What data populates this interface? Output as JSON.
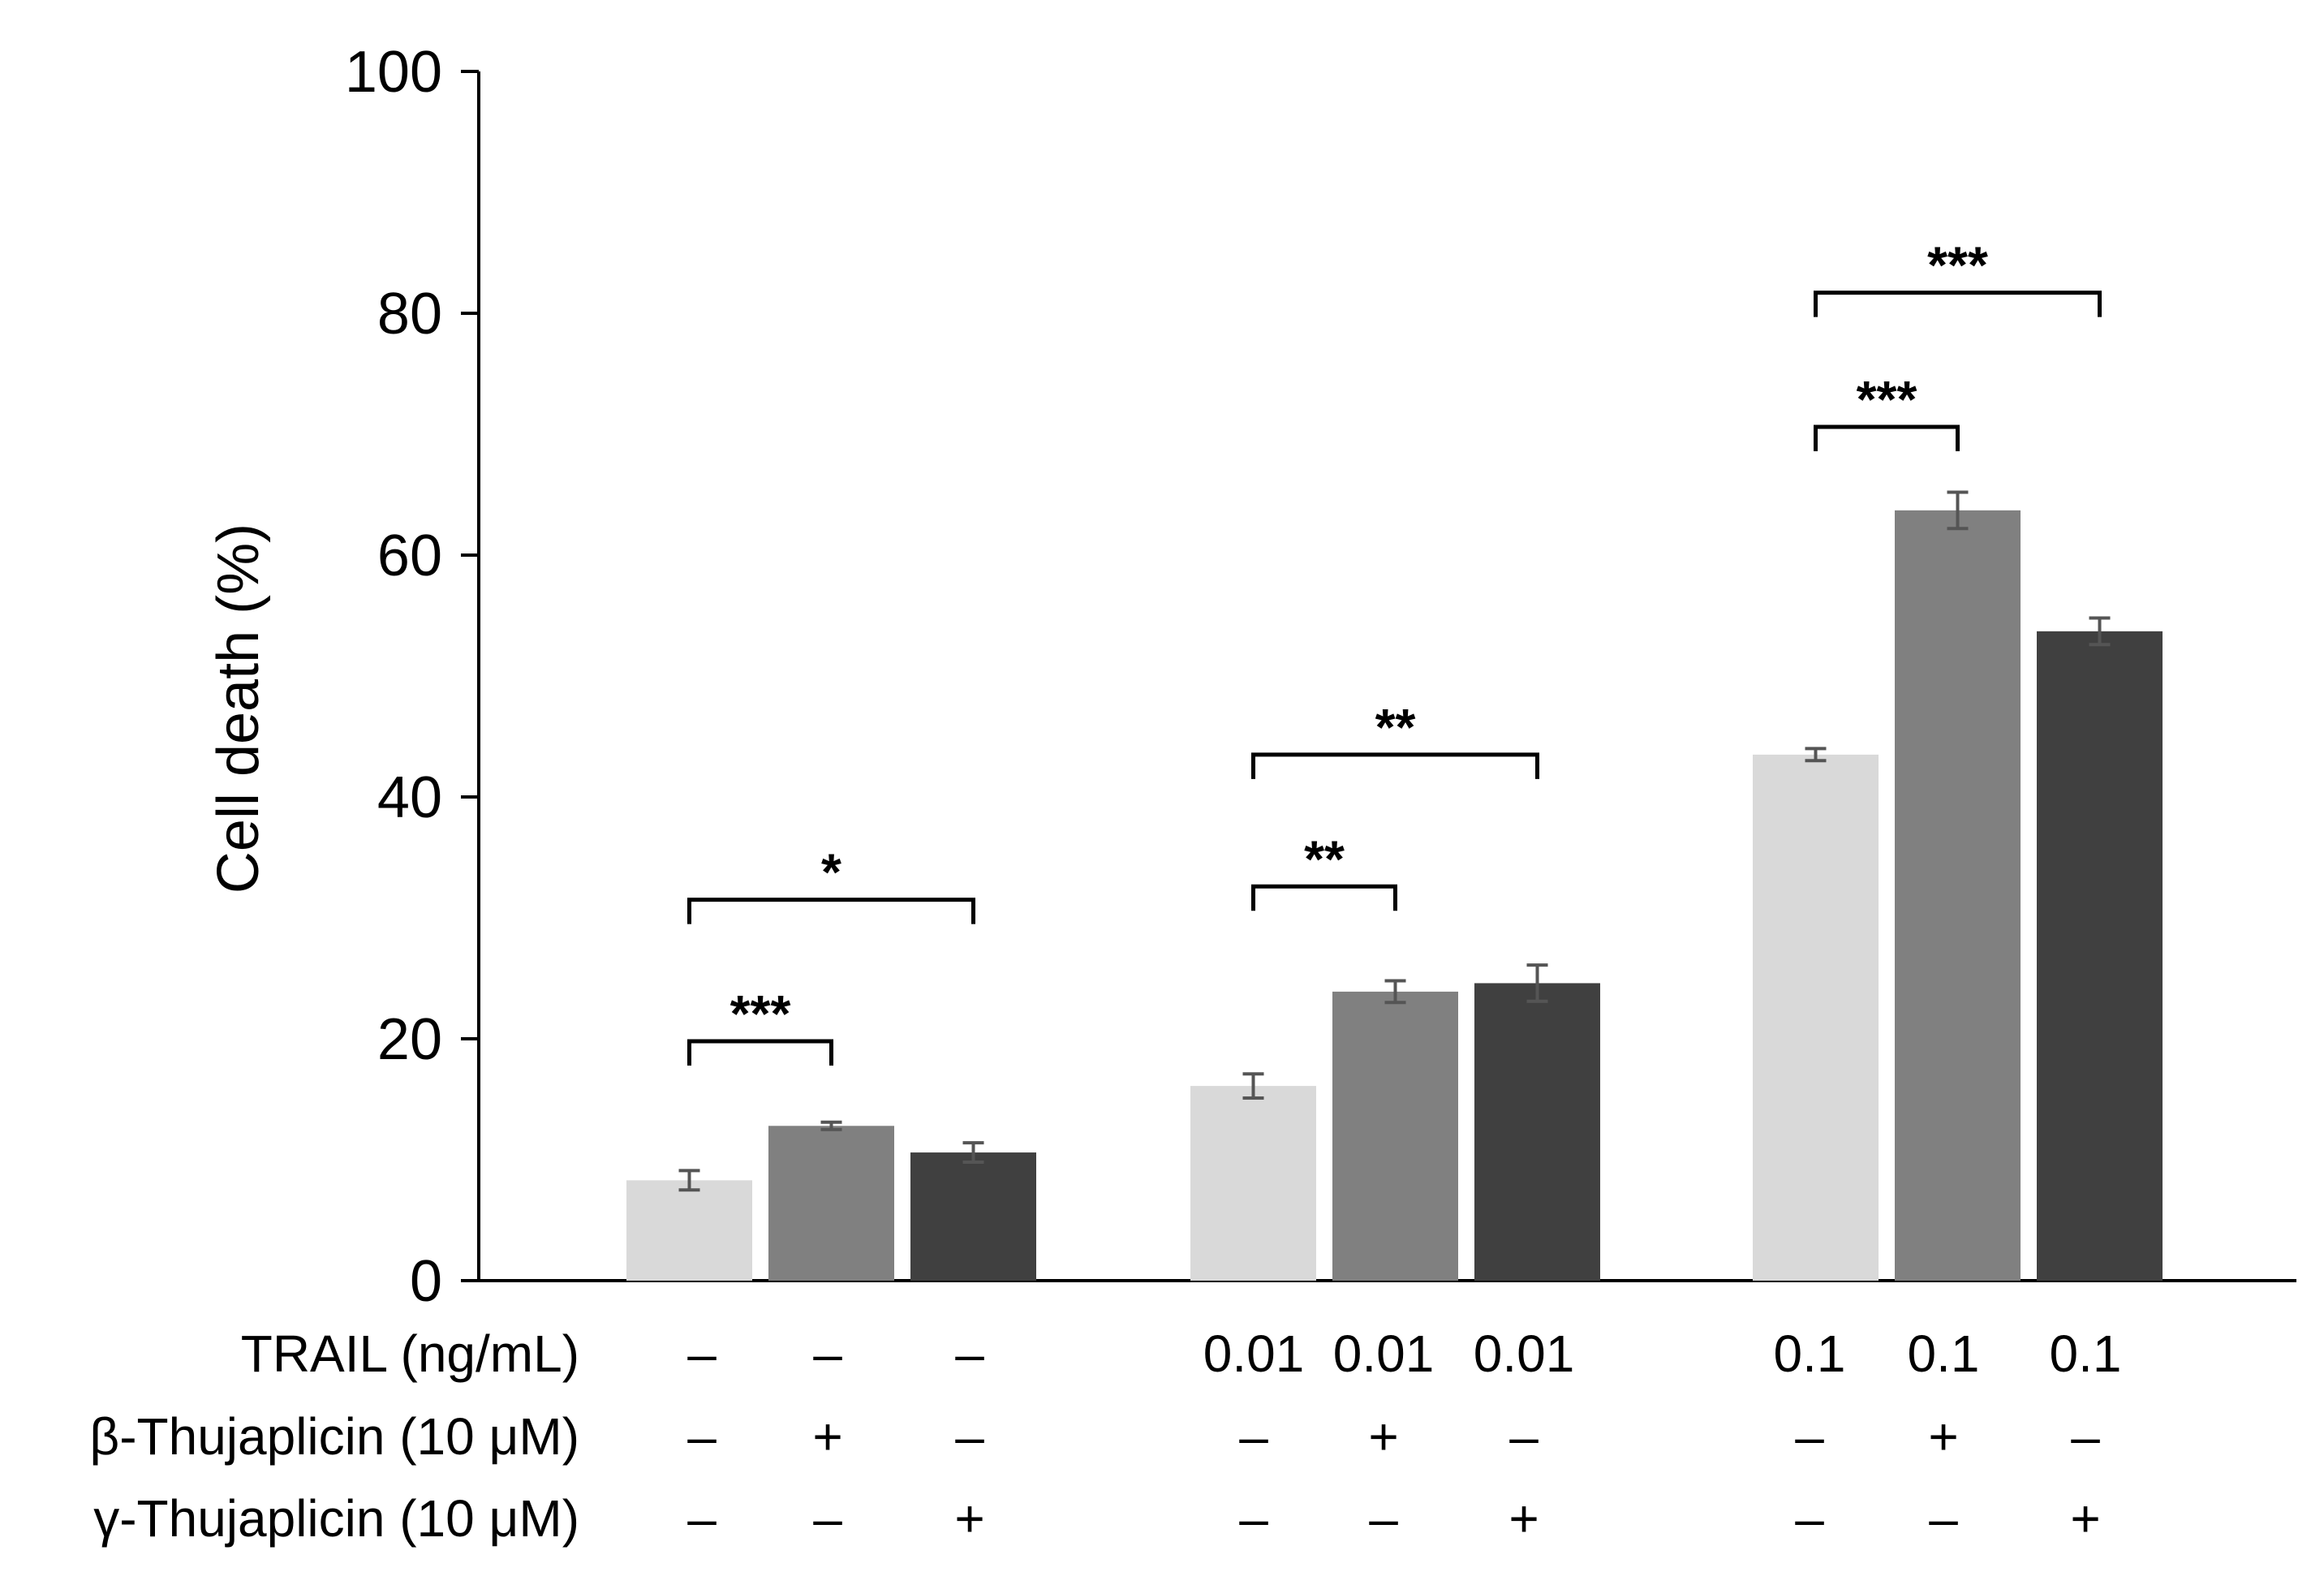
{
  "chart_data": {
    "type": "bar",
    "title": "",
    "xlabel": "",
    "ylabel": "Cell death (%)",
    "ylim": [
      0,
      100
    ],
    "yticks": [
      0,
      20,
      40,
      60,
      80,
      100
    ],
    "grid": false,
    "legend": "none",
    "groups": [
      {
        "bars": [
          {
            "value": 8.3,
            "error": 0.8,
            "color": "#d9d9d9"
          },
          {
            "value": 12.8,
            "error": 0.3,
            "color": "#808080"
          },
          {
            "value": 10.6,
            "error": 0.8,
            "color": "#404040"
          }
        ],
        "conditions": [
          [
            "–",
            "–",
            "–"
          ],
          [
            "–",
            "+",
            "–"
          ],
          [
            "–",
            "–",
            "+"
          ]
        ],
        "brackets": [
          {
            "from": 0,
            "to": 1,
            "y": 19.8,
            "label": "***"
          },
          {
            "from": 0,
            "to": 2,
            "y": 31.5,
            "label": "*"
          }
        ]
      },
      {
        "bars": [
          {
            "value": 16.1,
            "error": 1.0,
            "color": "#d9d9d9"
          },
          {
            "value": 23.9,
            "error": 0.9,
            "color": "#808080"
          },
          {
            "value": 24.6,
            "error": 1.5,
            "color": "#404040"
          }
        ],
        "conditions": [
          [
            "0.01",
            "0.01",
            "0.01"
          ],
          [
            "–",
            "+",
            "–"
          ],
          [
            "–",
            "–",
            "+"
          ]
        ],
        "brackets": [
          {
            "from": 0,
            "to": 1,
            "y": 32.6,
            "label": "**"
          },
          {
            "from": 0,
            "to": 2,
            "y": 43.5,
            "label": "**"
          }
        ]
      },
      {
        "bars": [
          {
            "value": 43.5,
            "error": 0.5,
            "color": "#d9d9d9"
          },
          {
            "value": 63.7,
            "error": 1.5,
            "color": "#808080"
          },
          {
            "value": 53.7,
            "error": 1.1,
            "color": "#404040"
          }
        ],
        "conditions": [
          [
            "0.1",
            "0.1",
            "0.1"
          ],
          [
            "–",
            "+",
            "–"
          ],
          [
            "–",
            "–",
            "+"
          ]
        ],
        "brackets": [
          {
            "from": 0,
            "to": 1,
            "y": 70.6,
            "label": "***"
          },
          {
            "from": 0,
            "to": 2,
            "y": 81.7,
            "label": "***"
          }
        ]
      }
    ],
    "row_labels": [
      "TRAIL (ng/mL)",
      "β-Thujaplicin  (10 μM)",
      "γ-Thujaplicin  (10 μM)"
    ]
  }
}
